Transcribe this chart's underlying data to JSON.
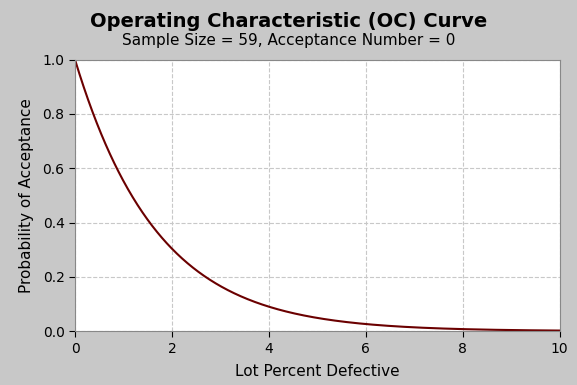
{
  "title": "Operating Characteristic (OC) Curve",
  "subtitle": "Sample Size = 59, Acceptance Number = 0",
  "xlabel": "Lot Percent Defective",
  "ylabel": "Probability of Acceptance",
  "xlim": [
    0,
    10
  ],
  "ylim": [
    0,
    1.0
  ],
  "xticks": [
    0,
    2,
    4,
    6,
    8,
    10
  ],
  "yticks": [
    0.0,
    0.2,
    0.4,
    0.6,
    0.8,
    1.0
  ],
  "sample_size": 59,
  "acceptance_number": 0,
  "line_color": "#6B0000",
  "line_width": 1.5,
  "background_color": "#C8C8C8",
  "plot_bg_color": "#FFFFFF",
  "grid_color": "#C8C8C8",
  "grid_style": "--",
  "title_fontsize": 14,
  "subtitle_fontsize": 11,
  "axis_label_fontsize": 11,
  "tick_fontsize": 10
}
